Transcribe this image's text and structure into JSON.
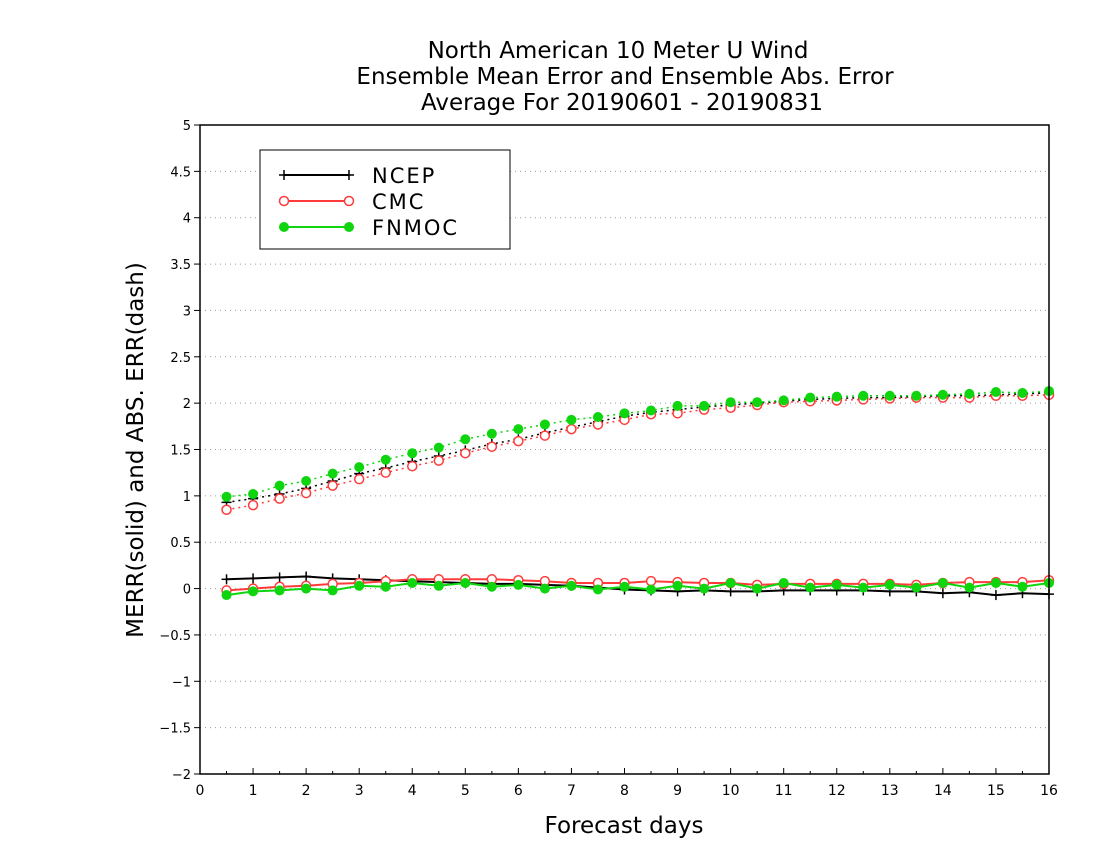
{
  "chart_data": {
    "type": "line",
    "title": [
      "North American 10 Meter U Wind",
      "Ensemble Mean Error and Ensemble Abs. Error",
      "Average For 20190601 - 20190831"
    ],
    "xlabel": "Forecast days",
    "ylabel": "MERR(solid) and ABS. ERR(dash)",
    "xlim": [
      0,
      16
    ],
    "ylim": [
      -2,
      5
    ],
    "x_ticks": [
      0,
      1,
      2,
      3,
      4,
      5,
      6,
      7,
      8,
      9,
      10,
      11,
      12,
      13,
      14,
      15,
      16
    ],
    "y_ticks": [
      -2,
      -1.5,
      -1,
      -0.5,
      0,
      0.5,
      1,
      1.5,
      2,
      2.5,
      3,
      3.5,
      4,
      4.5,
      5
    ],
    "grid": "horizontal dotted",
    "legend_position": "top-left",
    "x": [
      0.5,
      1,
      1.5,
      2,
      2.5,
      3,
      3.5,
      4,
      4.5,
      5,
      5.5,
      6,
      6.5,
      7,
      7.5,
      8,
      8.5,
      9,
      9.5,
      10,
      10.5,
      11,
      11.5,
      12,
      12.5,
      13,
      13.5,
      14,
      14.5,
      15,
      15.5,
      16
    ],
    "series": [
      {
        "name": "NCEP",
        "color": "#000000",
        "marker": "plus",
        "merr": [
          0.1,
          0.11,
          0.12,
          0.13,
          0.11,
          0.1,
          0.09,
          0.08,
          0.07,
          0.06,
          0.05,
          0.05,
          0.04,
          0.03,
          0.01,
          -0.01,
          -0.02,
          -0.03,
          -0.02,
          -0.03,
          -0.03,
          -0.02,
          -0.02,
          -0.02,
          -0.02,
          -0.03,
          -0.03,
          -0.05,
          -0.04,
          -0.07,
          -0.05,
          -0.06
        ],
        "abs_err": [
          0.93,
          0.97,
          1.02,
          1.08,
          1.16,
          1.24,
          1.3,
          1.37,
          1.43,
          1.49,
          1.56,
          1.61,
          1.68,
          1.74,
          1.8,
          1.86,
          1.9,
          1.93,
          1.96,
          1.98,
          2.0,
          2.02,
          2.04,
          2.05,
          2.06,
          2.06,
          2.07,
          2.08,
          2.08,
          2.09,
          2.1,
          2.11
        ]
      },
      {
        "name": "CMC",
        "color": "#ff3b3b",
        "marker": "open-circle",
        "merr": [
          -0.02,
          0.0,
          0.02,
          0.03,
          0.05,
          0.06,
          0.08,
          0.1,
          0.1,
          0.1,
          0.1,
          0.09,
          0.08,
          0.06,
          0.06,
          0.06,
          0.08,
          0.07,
          0.06,
          0.06,
          0.04,
          0.05,
          0.05,
          0.05,
          0.05,
          0.05,
          0.04,
          0.06,
          0.07,
          0.07,
          0.07,
          0.09
        ],
        "abs_err": [
          0.85,
          0.9,
          0.97,
          1.03,
          1.11,
          1.18,
          1.25,
          1.32,
          1.38,
          1.46,
          1.53,
          1.59,
          1.65,
          1.72,
          1.77,
          1.82,
          1.88,
          1.89,
          1.93,
          1.95,
          1.98,
          2.01,
          2.02,
          2.03,
          2.04,
          2.05,
          2.06,
          2.06,
          2.06,
          2.08,
          2.08,
          2.09
        ]
      },
      {
        "name": "FNMOC",
        "color": "#0ed50e",
        "marker": "filled-circle",
        "merr": [
          -0.07,
          -0.03,
          -0.02,
          0.0,
          -0.02,
          0.03,
          0.02,
          0.06,
          0.03,
          0.06,
          0.02,
          0.04,
          0.0,
          0.03,
          -0.01,
          0.02,
          -0.01,
          0.03,
          0.0,
          0.06,
          0.0,
          0.06,
          0.01,
          0.04,
          0.01,
          0.04,
          0.01,
          0.06,
          0.01,
          0.06,
          0.02,
          0.06
        ],
        "abs_err": [
          0.99,
          1.02,
          1.11,
          1.16,
          1.24,
          1.31,
          1.39,
          1.46,
          1.52,
          1.61,
          1.67,
          1.72,
          1.77,
          1.82,
          1.85,
          1.89,
          1.92,
          1.97,
          1.97,
          2.01,
          2.01,
          2.03,
          2.06,
          2.07,
          2.08,
          2.08,
          2.08,
          2.09,
          2.1,
          2.12,
          2.11,
          2.13
        ]
      }
    ]
  }
}
